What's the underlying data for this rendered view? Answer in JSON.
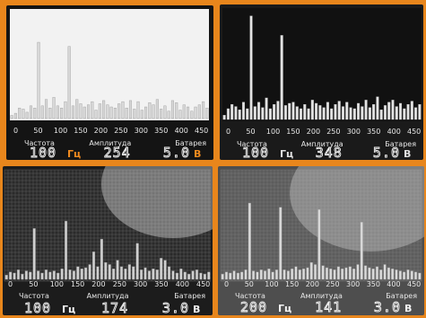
{
  "x_tick_labels": [
    "0",
    "50",
    "100",
    "150",
    "200",
    "250",
    "300",
    "350",
    "400",
    "450"
  ],
  "labels": {
    "frequency": "Частота",
    "amplitude": "Амплитуда",
    "battery": "Батарея"
  },
  "units": {
    "hz": "Гц",
    "volt": "В"
  },
  "colors": {
    "frame": "#e8861c",
    "screen_dark": "#151515",
    "screen_gray": "#5e5e5e",
    "bar": "#e6e6e6",
    "accent": "#f08a1e"
  },
  "panels": [
    {
      "name": "top-left",
      "frequency_display": "100",
      "amplitude_display": "254",
      "battery_display": "5.0",
      "spectrum": [
        3,
        5,
        10,
        9,
        6,
        12,
        10,
        72,
        12,
        18,
        10,
        20,
        12,
        10,
        16,
        68,
        12,
        18,
        14,
        11,
        13,
        16,
        8,
        14,
        17,
        13,
        11,
        10,
        14,
        16,
        10,
        17,
        9,
        16,
        8,
        11,
        15,
        13,
        18,
        9,
        12,
        7,
        17,
        15,
        8,
        13,
        11,
        7,
        11,
        13,
        16,
        10
      ]
    },
    {
      "name": "top-right",
      "frequency_display": "100",
      "amplitude_display": "348",
      "battery_display": "5.0",
      "spectrum": [
        4,
        10,
        14,
        12,
        9,
        16,
        10,
        96,
        12,
        16,
        11,
        20,
        10,
        14,
        17,
        78,
        13,
        15,
        16,
        12,
        10,
        14,
        10,
        18,
        15,
        13,
        11,
        16,
        10,
        14,
        17,
        12,
        16,
        11,
        10,
        15,
        12,
        18,
        11,
        14,
        21,
        9,
        13,
        16,
        18,
        12,
        15,
        10,
        14,
        17,
        11,
        14
      ]
    },
    {
      "name": "bottom-left",
      "frequency_display": "100",
      "amplitude_display": "174",
      "battery_display": "3.0",
      "spectrum": [
        4,
        7,
        6,
        9,
        5,
        8,
        7,
        48,
        8,
        6,
        9,
        7,
        8,
        6,
        10,
        55,
        9,
        8,
        12,
        10,
        11,
        14,
        26,
        12,
        38,
        16,
        14,
        10,
        18,
        12,
        10,
        14,
        12,
        34,
        9,
        11,
        8,
        10,
        9,
        20,
        18,
        12,
        8,
        6,
        10,
        7,
        5,
        8,
        9,
        6,
        5,
        7
      ]
    },
    {
      "name": "bottom-right",
      "frequency_display": "200",
      "amplitude_display": "141",
      "battery_display": "3.0",
      "spectrum": [
        5,
        7,
        6,
        8,
        6,
        7,
        9,
        72,
        8,
        7,
        9,
        8,
        10,
        7,
        9,
        68,
        9,
        8,
        10,
        12,
        9,
        10,
        11,
        16,
        14,
        66,
        13,
        11,
        10,
        9,
        12,
        10,
        11,
        12,
        10,
        14,
        54,
        13,
        11,
        10,
        12,
        9,
        14,
        11,
        10,
        9,
        8,
        7,
        9,
        8,
        7,
        6
      ]
    }
  ]
}
